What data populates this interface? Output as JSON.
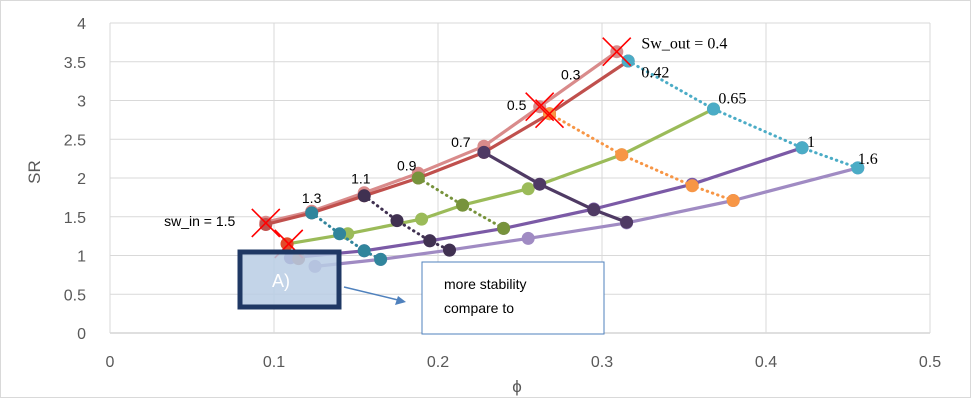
{
  "chart_data": {
    "type": "line",
    "xlabel": "ϕ",
    "ylabel": "SR",
    "xlim": [
      0,
      0.5
    ],
    "ylim": [
      0,
      4
    ],
    "xticks": [
      "0",
      "0.1",
      "0.2",
      "0.3",
      "0.4",
      "0.5"
    ],
    "yticks": [
      "0",
      "0.5",
      "1",
      "1.5",
      "2",
      "2.5",
      "3",
      "3.5",
      "4"
    ],
    "grid": true,
    "legend": "none",
    "series": [
      {
        "style": "solid",
        "color": "#d98b8b",
        "x": [
          0.095,
          0.123,
          0.155,
          0.188,
          0.228,
          0.262,
          0.309
        ],
        "y": [
          1.43,
          1.57,
          1.81,
          2.06,
          2.41,
          2.92,
          3.63
        ]
      },
      {
        "style": "solid",
        "color": "#c0504d",
        "x": [
          0.095,
          0.123,
          0.155,
          0.188,
          0.228,
          0.268,
          0.316
        ],
        "y": [
          1.4,
          1.55,
          1.77,
          2.0,
          2.33,
          2.83,
          3.51
        ]
      },
      {
        "style": "solid",
        "color": "#9bbb59",
        "x": [
          0.108,
          0.145,
          0.19,
          0.215,
          0.255,
          0.312,
          0.368
        ],
        "y": [
          1.15,
          1.28,
          1.47,
          1.65,
          1.86,
          2.3,
          2.89
        ]
      },
      {
        "style": "solid",
        "color": "#7b5aa6",
        "x": [
          0.11,
          0.155,
          0.195,
          0.24,
          0.295,
          0.355,
          0.422
        ],
        "y": [
          0.97,
          1.06,
          1.19,
          1.35,
          1.6,
          1.92,
          2.39
        ]
      },
      {
        "style": "solid",
        "color": "#a08bc3",
        "x": [
          0.125,
          0.165,
          0.207,
          0.255,
          0.315,
          0.38,
          0.456
        ],
        "y": [
          0.86,
          0.95,
          1.07,
          1.22,
          1.42,
          1.71,
          2.13
        ]
      },
      {
        "style": "solid",
        "color": "#4f3a64",
        "x": [
          0.228,
          0.262,
          0.295,
          0.315
        ],
        "y": [
          2.33,
          1.92,
          1.59,
          1.43
        ]
      },
      {
        "style": "dotted",
        "color": "#4bacc6",
        "x": [
          0.316,
          0.368,
          0.422,
          0.456
        ],
        "y": [
          3.51,
          2.89,
          2.39,
          2.13
        ]
      },
      {
        "style": "dotted",
        "color": "#f79646",
        "x": [
          0.268,
          0.312,
          0.355,
          0.38
        ],
        "y": [
          2.83,
          2.3,
          1.9,
          1.71
        ]
      },
      {
        "style": "dotted",
        "color": "#77933c",
        "x": [
          0.188,
          0.215,
          0.24
        ],
        "y": [
          2.0,
          1.65,
          1.35
        ]
      },
      {
        "style": "dotted",
        "color": "#403151",
        "x": [
          0.155,
          0.175,
          0.195,
          0.207
        ],
        "y": [
          1.77,
          1.45,
          1.19,
          1.07
        ]
      },
      {
        "style": "dotted",
        "color": "#31859c",
        "x": [
          0.123,
          0.14,
          0.155,
          0.165
        ],
        "y": [
          1.55,
          1.28,
          1.06,
          0.95
        ]
      },
      {
        "style": "none",
        "color": "#a05a4a",
        "x": [
          0.115
        ],
        "y": [
          0.96
        ]
      },
      {
        "style": "none",
        "color": "#e24b2a",
        "x": [
          0.108
        ],
        "y": [
          1.15
        ]
      }
    ],
    "crosses": [
      {
        "x": 0.095,
        "y": 1.42
      },
      {
        "x": 0.109,
        "y": 1.15
      },
      {
        "x": 0.262,
        "y": 2.92
      },
      {
        "x": 0.268,
        "y": 2.83
      },
      {
        "x": 0.309,
        "y": 3.63
      }
    ],
    "annotations": [
      {
        "text": "Sw_out = 0.4",
        "x": 0.324,
        "y": 3.67,
        "font": "serif"
      },
      {
        "text": "0.42",
        "x": 0.324,
        "y": 3.3,
        "font": "serif"
      },
      {
        "text": "0.65",
        "x": 0.371,
        "y": 2.96,
        "font": "serif"
      },
      {
        "text": "1",
        "x": 0.425,
        "y": 2.4,
        "font": "serif"
      },
      {
        "text": "1.6",
        "x": 0.456,
        "y": 2.18,
        "font": "serif"
      },
      {
        "text": "0.3",
        "x": 0.275,
        "y": 3.27,
        "font": "sans"
      },
      {
        "text": "0.5",
        "x": 0.242,
        "y": 2.88,
        "font": "sans"
      },
      {
        "text": "0.7",
        "x": 0.208,
        "y": 2.4,
        "font": "sans"
      },
      {
        "text": "0.9",
        "x": 0.175,
        "y": 2.1,
        "font": "sans"
      },
      {
        "text": "1.1",
        "x": 0.147,
        "y": 1.93,
        "font": "sans"
      },
      {
        "text": "1.3",
        "x": 0.117,
        "y": 1.68,
        "font": "sans"
      },
      {
        "text": "sw_in = 1.5",
        "x": 0.033,
        "y": 1.38,
        "font": "sans"
      }
    ]
  },
  "panel_label": "A)",
  "note": {
    "line1": "more stability",
    "line2": "compare to"
  }
}
